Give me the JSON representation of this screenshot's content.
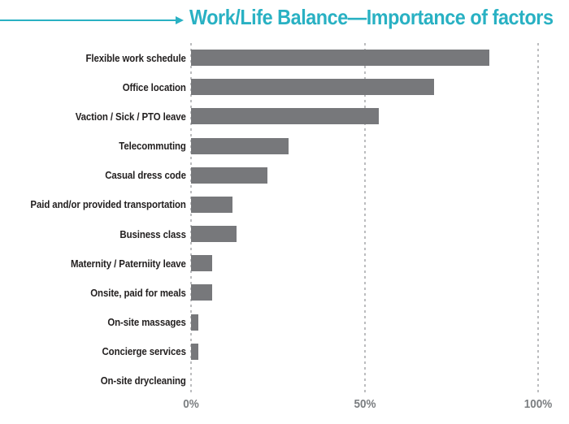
{
  "title": "Work/Life Balance—Importance of factors",
  "colors": {
    "accent_teal": "#29b1c3",
    "bar_gray": "#77787b",
    "gridline_gray": "#bcbdbf",
    "axis_label_gray": "#7b7e81",
    "category_label_black": "#221f1f"
  },
  "chart_data": {
    "type": "bar",
    "orientation": "horizontal",
    "title": "Work/Life Balance—Importance of factors",
    "xlabel": "",
    "ylabel": "",
    "categories": [
      "Flexible work schedule",
      "Office location",
      "Vaction / Sick / PTO leave",
      "Telecommuting",
      "Casual dress code",
      "Paid and/or provided transportation",
      "Business class",
      "Maternity / Paterniity leave",
      "Onsite, paid for meals",
      "On-site massages",
      "Concierge services",
      "On-site drycleaning"
    ],
    "values": [
      86,
      70,
      54,
      28,
      22,
      12,
      13,
      6,
      6,
      2,
      2,
      0
    ],
    "value_unit": "%",
    "xlim": [
      0,
      100
    ],
    "x_ticks": [
      "0%",
      "50%",
      "100%"
    ],
    "grid": "vertical dotted lines at 0%, 50%, 100%",
    "legend": "none"
  }
}
